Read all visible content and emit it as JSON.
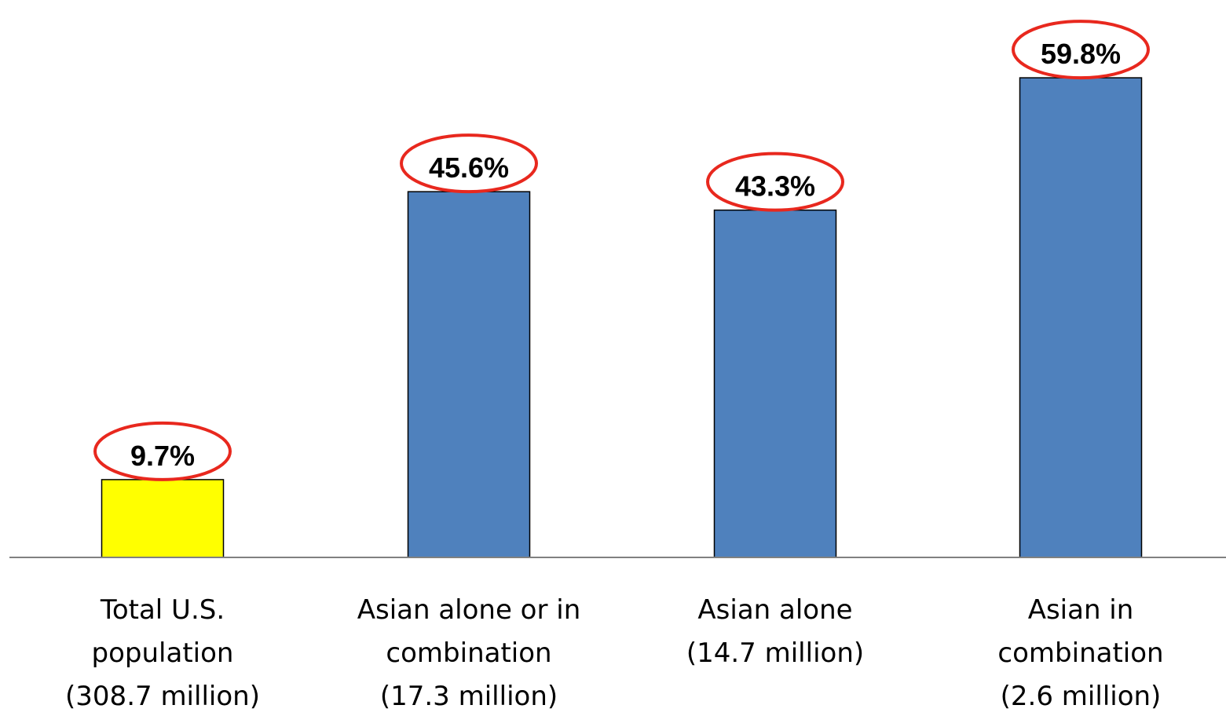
{
  "chart_data": {
    "type": "bar",
    "title": "",
    "xlabel": "",
    "ylabel": "",
    "ylim": [
      0,
      65
    ],
    "grid": false,
    "legend": "none",
    "categories": [
      [
        "Total U.S.",
        "population",
        "(308.7 million)"
      ],
      [
        "Asian alone or in",
        "combination",
        "(17.3 million)"
      ],
      [
        "Asian alone",
        "(14.7 million)"
      ],
      [
        "Asian in",
        "combination",
        "(2.6 million)"
      ]
    ],
    "values": [
      9.7,
      45.6,
      43.3,
      59.8
    ],
    "data_labels": [
      "9.7%",
      "45.6%",
      "43.3%",
      "59.8%"
    ],
    "bar_colors": [
      "#ffff00",
      "#4f81bd",
      "#4f81bd",
      "#4f81bd"
    ],
    "highlight_color": "#e8281e",
    "axis_color": "#808080"
  }
}
